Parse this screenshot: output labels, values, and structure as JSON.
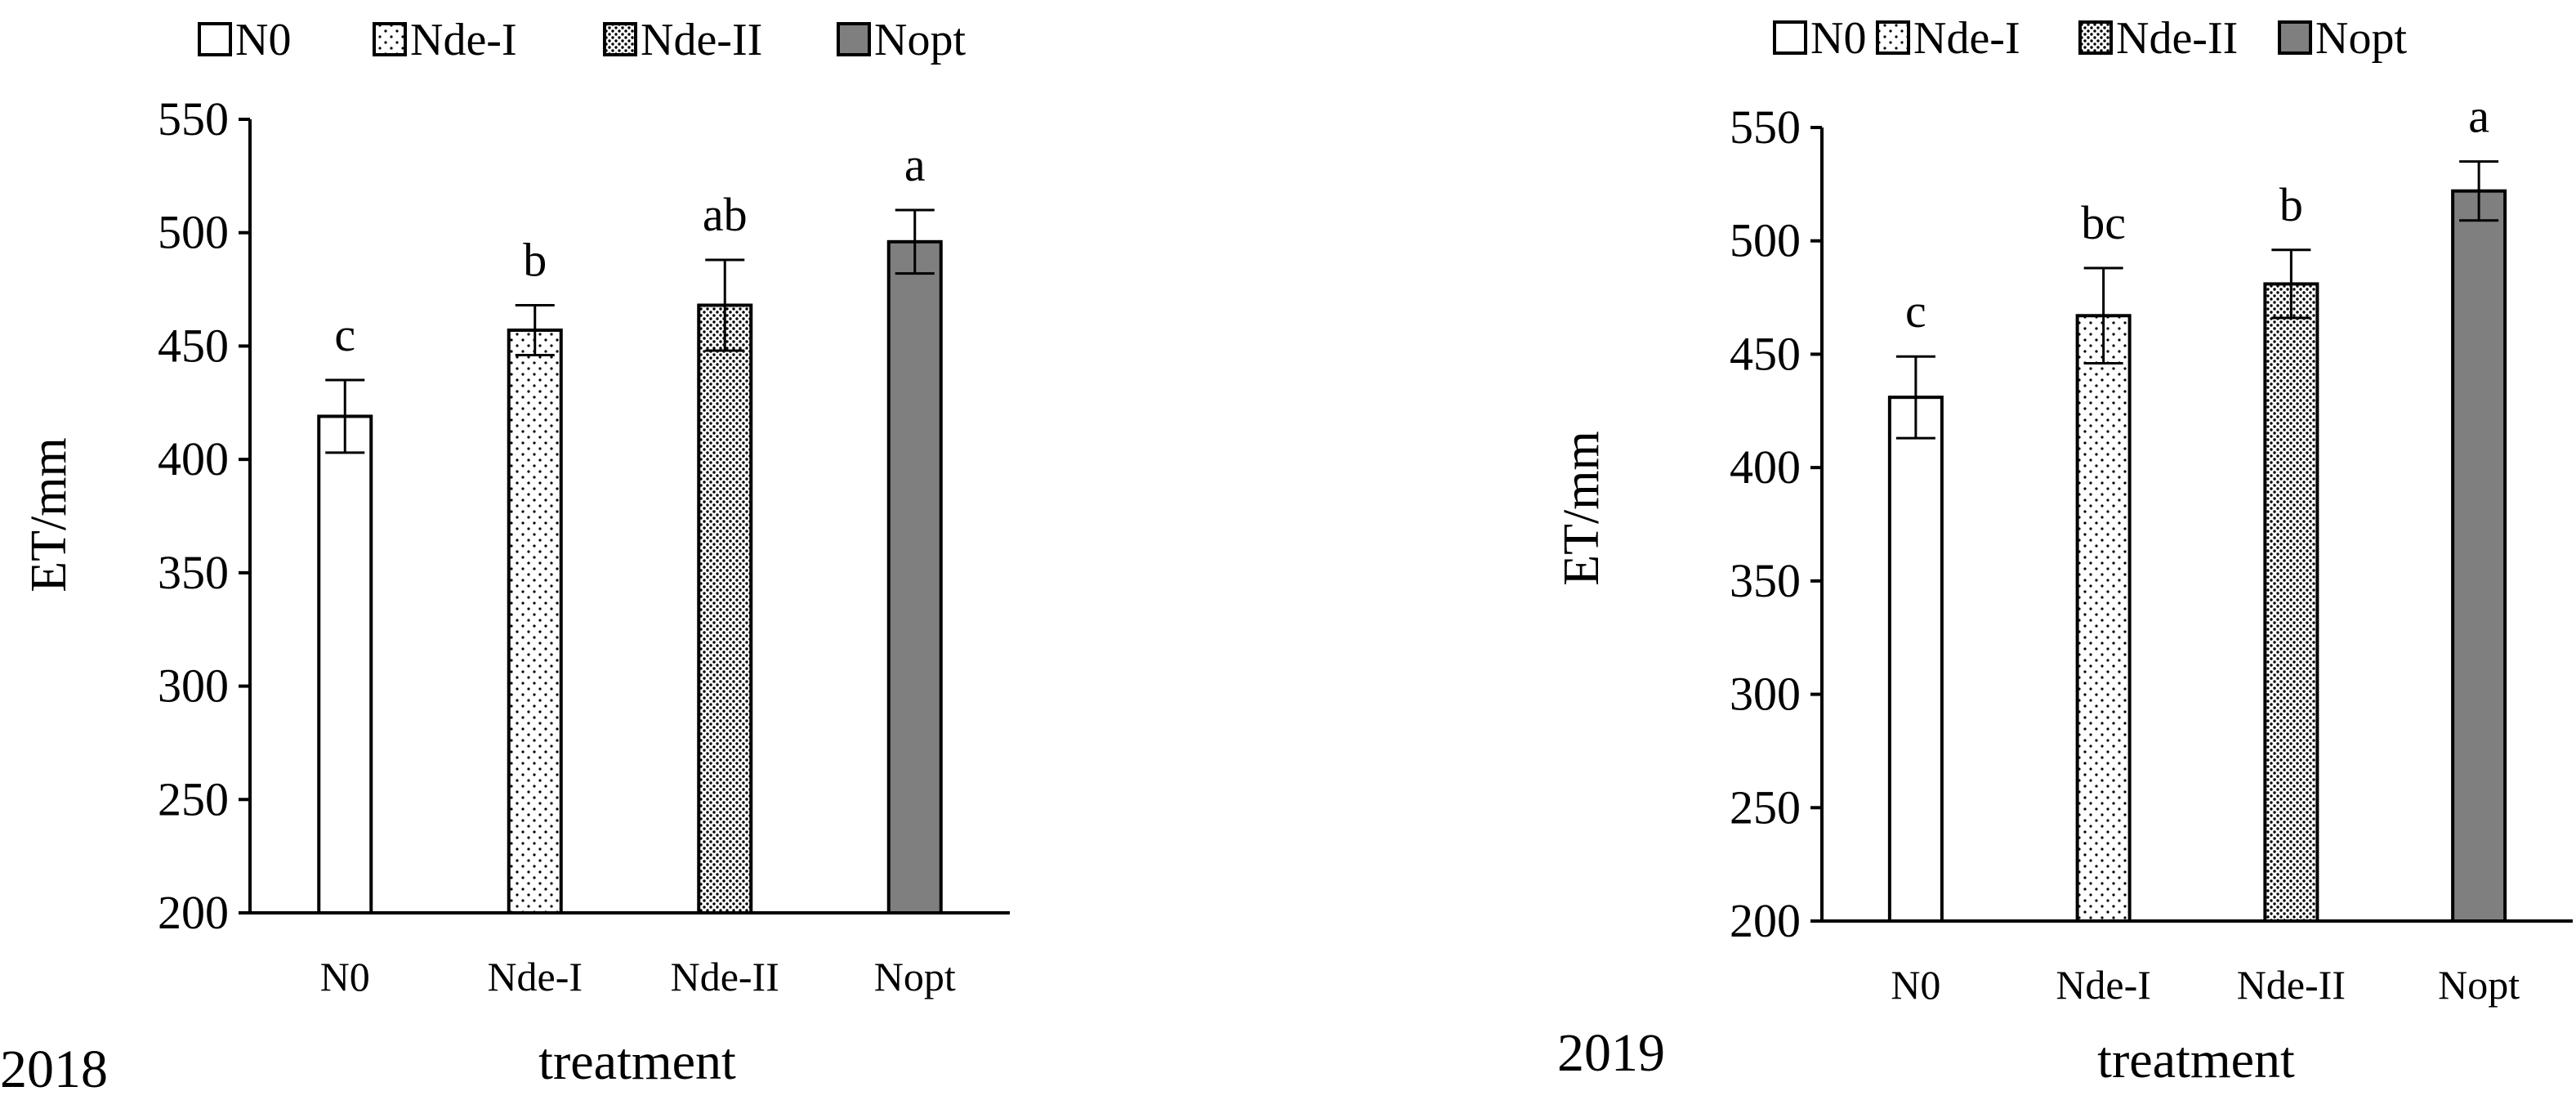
{
  "chart_data": [
    {
      "type": "bar",
      "panel_label": "2018",
      "categories": [
        "N0",
        "Nde-I",
        "Nde-II",
        "Nopt"
      ],
      "values": [
        419,
        457,
        468,
        496
      ],
      "errors": [
        16,
        11,
        20,
        14
      ],
      "significance": [
        "c",
        "b",
        "ab",
        "a"
      ],
      "xlabel": "treatment",
      "ylabel": "ET/mm",
      "ylim": [
        200,
        550
      ],
      "yticks": [
        200,
        250,
        300,
        350,
        400,
        450,
        500,
        550
      ],
      "legend": [
        "N0",
        "Nde-I",
        "Nde-II",
        "Nopt"
      ],
      "legend_position": "top",
      "grid": false,
      "fills": [
        "none",
        "dots-sparse",
        "dots-dense",
        "#7f7f7f"
      ]
    },
    {
      "type": "bar",
      "panel_label": "2019",
      "categories": [
        "N0",
        "Nde-I",
        "Nde-II",
        "Nopt"
      ],
      "values": [
        431,
        467,
        481,
        522
      ],
      "errors": [
        18,
        21,
        15,
        13
      ],
      "significance": [
        "c",
        "bc",
        "b",
        "a"
      ],
      "xlabel": "treatment",
      "ylabel": "ET/mm",
      "ylim": [
        200,
        550
      ],
      "yticks": [
        200,
        250,
        300,
        350,
        400,
        450,
        500,
        550
      ],
      "legend": [
        "N0",
        "Nde-I",
        "Nde-II",
        "Nopt"
      ],
      "legend_position": "top",
      "grid": false,
      "fills": [
        "none",
        "dots-sparse",
        "dots-dense",
        "#7f7f7f"
      ]
    }
  ]
}
